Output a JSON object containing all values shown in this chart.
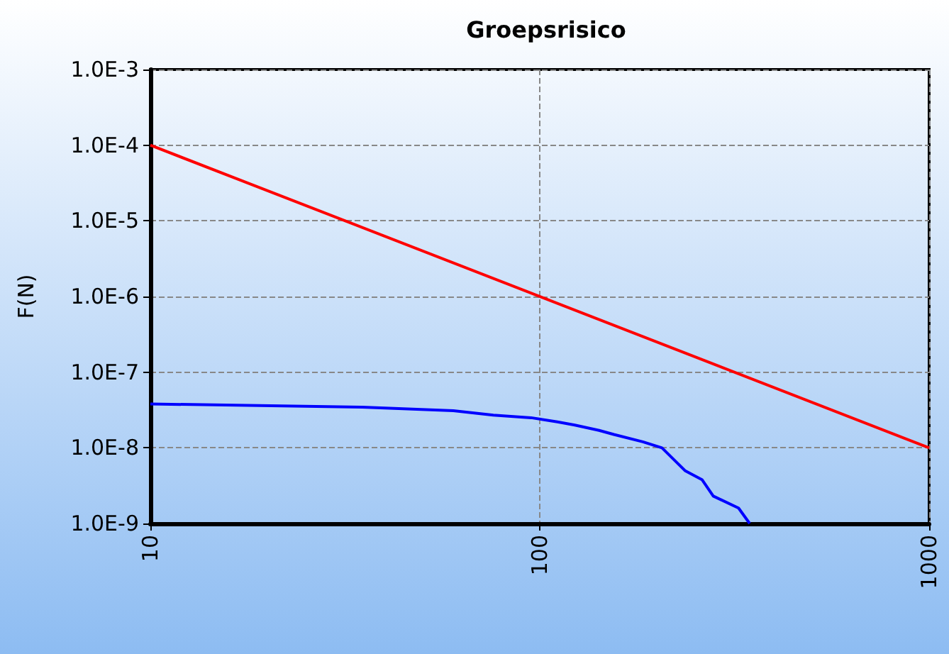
{
  "chart_data": {
    "type": "line",
    "title": "Groepsrisico",
    "ylabel": "F(N)",
    "log": "xy",
    "grid": true,
    "marker": "none",
    "line_style": "solid",
    "xlim": [
      10,
      1000
    ],
    "xticks": [
      10,
      100,
      1000
    ],
    "ylim": [
      1e-09,
      0.001
    ],
    "yticks": [
      {
        "value": 1e-09,
        "label": "1.0E-9"
      },
      {
        "value": 1e-08,
        "label": "1.0E-8"
      },
      {
        "value": 1e-07,
        "label": "1.0E-7"
      },
      {
        "value": 1e-06,
        "label": "1.0E-6"
      },
      {
        "value": 1e-05,
        "label": "1.0E-5"
      },
      {
        "value": 0.0001,
        "label": "1.0E-4"
      },
      {
        "value": 0.001,
        "label": "1.0E-3"
      }
    ],
    "series": [
      {
        "color": "#ff0000",
        "x": [
          10,
          1000
        ],
        "values": [
          0.0001,
          1e-08
        ]
      },
      {
        "color": "#0000ff",
        "x": [
          10,
          35,
          60,
          76,
          95,
          111,
          123,
          142,
          155,
          184,
          206,
          236,
          261,
          279,
          324,
          346
        ],
        "values": [
          3.8e-08,
          3.45e-08,
          3.1e-08,
          2.7e-08,
          2.5e-08,
          2.2e-08,
          2e-08,
          1.7e-08,
          1.5e-08,
          1.2e-08,
          1e-08,
          5e-09,
          3.8e-09,
          2.3e-09,
          1.6e-09,
          1e-09
        ]
      }
    ]
  }
}
